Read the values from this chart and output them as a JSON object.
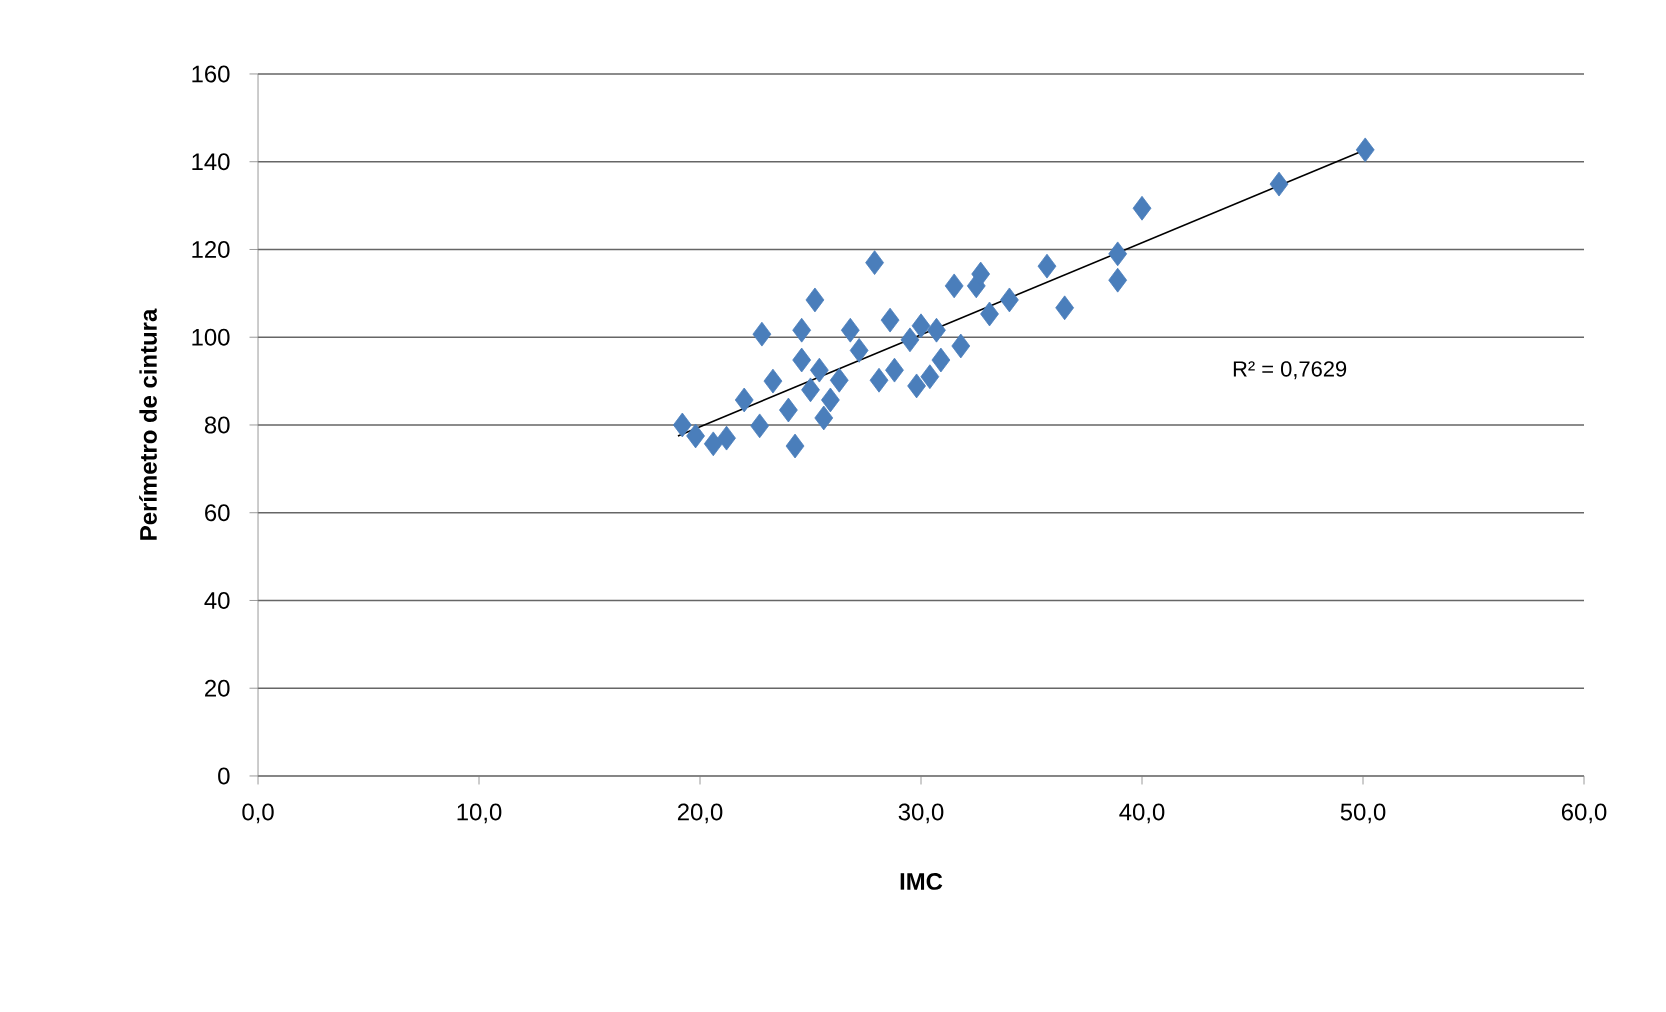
{
  "chart_data": {
    "type": "scatter",
    "xlabel": "IMC",
    "ylabel": "Perímetro de cintura",
    "xlim": [
      0,
      60
    ],
    "ylim": [
      0,
      160
    ],
    "xticks": [
      {
        "value": 0,
        "label": "0,0"
      },
      {
        "value": 10,
        "label": "10,0"
      },
      {
        "value": 20,
        "label": "20,0"
      },
      {
        "value": 30,
        "label": "30,0"
      },
      {
        "value": 40,
        "label": "40,0"
      },
      {
        "value": 50,
        "label": "50,0"
      },
      {
        "value": 60,
        "label": "60,0"
      }
    ],
    "yticks": [
      0,
      20,
      40,
      60,
      80,
      100,
      120,
      140,
      160
    ],
    "grid": "y",
    "annotations": [
      "R² = 0,7629"
    ],
    "series": [
      {
        "marker": "diamond",
        "color": "#4a7ebb",
        "x": [
          19.2,
          19.8,
          20.6,
          21.2,
          22.0,
          22.8,
          23.3,
          22.7,
          24.0,
          24.3,
          24.6,
          24.6,
          25.0,
          25.2,
          25.4,
          25.6,
          25.9,
          26.3,
          26.8,
          27.2,
          27.9,
          28.1,
          28.6,
          28.8,
          29.5,
          29.8,
          30.0,
          30.4,
          30.7,
          30.9,
          31.5,
          31.8,
          32.5,
          32.7,
          33.1,
          34.0,
          35.7,
          36.5,
          38.9,
          38.9,
          40.0,
          46.2,
          50.1
        ],
        "values": [
          80,
          77.5,
          75.7,
          77,
          85.7,
          100.7,
          90,
          79.8,
          83.4,
          75.2,
          101.6,
          94.8,
          88,
          108.5,
          92.5,
          81.6,
          85.7,
          90.2,
          101.6,
          97,
          117,
          90.2,
          103.9,
          92.5,
          99.4,
          88.9,
          102.6,
          91,
          101.6,
          94.8,
          111.7,
          98,
          111.7,
          114.4,
          105.3,
          108.5,
          116.2,
          106.7,
          119,
          113,
          129.4,
          134.9,
          142.7
        ]
      },
      {
        "type": "line",
        "color": "#000000",
        "x": [
          19.0,
          50.0
        ],
        "values": [
          77.5,
          142.5
        ]
      }
    ]
  }
}
